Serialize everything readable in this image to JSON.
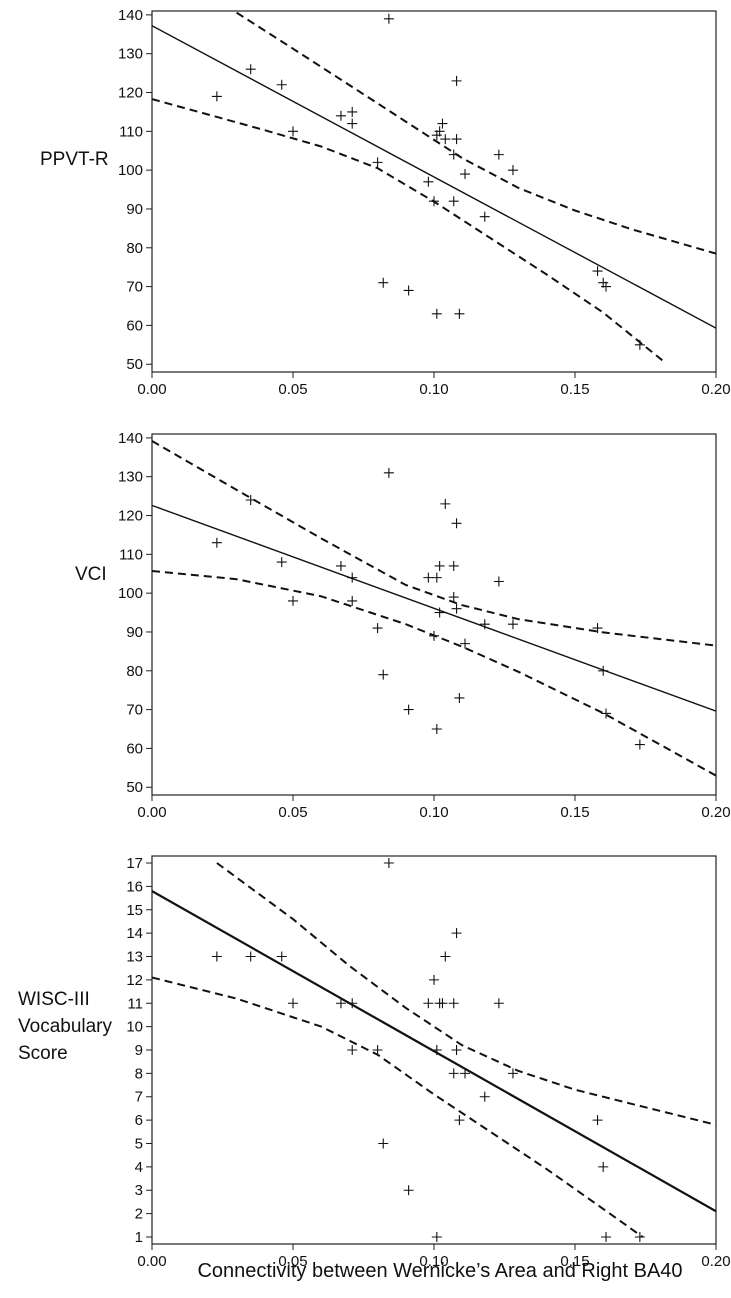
{
  "figure": {
    "xlabel": "Connectivity between Wernicke’s Area and Right BA40"
  },
  "chart_data": [
    {
      "type": "scatter",
      "ylabel": [
        "PPVT-R"
      ],
      "xlim": [
        0.0,
        0.2
      ],
      "ylim": [
        48,
        141
      ],
      "x_ticks": [
        "0.00",
        "0.05",
        "0.10",
        "0.15",
        "0.20"
      ],
      "y_ticks": [
        "50",
        "60",
        "70",
        "80",
        "90",
        "100",
        "110",
        "120",
        "130",
        "140"
      ],
      "points": [
        {
          "x": 0.023,
          "y": 119
        },
        {
          "x": 0.035,
          "y": 126
        },
        {
          "x": 0.046,
          "y": 122
        },
        {
          "x": 0.05,
          "y": 110
        },
        {
          "x": 0.067,
          "y": 114
        },
        {
          "x": 0.071,
          "y": 115
        },
        {
          "x": 0.071,
          "y": 112
        },
        {
          "x": 0.08,
          "y": 102
        },
        {
          "x": 0.082,
          "y": 71
        },
        {
          "x": 0.084,
          "y": 139
        },
        {
          "x": 0.091,
          "y": 69
        },
        {
          "x": 0.098,
          "y": 97
        },
        {
          "x": 0.1,
          "y": 92
        },
        {
          "x": 0.101,
          "y": 109
        },
        {
          "x": 0.101,
          "y": 63
        },
        {
          "x": 0.102,
          "y": 110
        },
        {
          "x": 0.103,
          "y": 112
        },
        {
          "x": 0.104,
          "y": 108
        },
        {
          "x": 0.107,
          "y": 104
        },
        {
          "x": 0.107,
          "y": 92
        },
        {
          "x": 0.108,
          "y": 123
        },
        {
          "x": 0.108,
          "y": 108
        },
        {
          "x": 0.109,
          "y": 63
        },
        {
          "x": 0.111,
          "y": 99
        },
        {
          "x": 0.118,
          "y": 88
        },
        {
          "x": 0.123,
          "y": 104
        },
        {
          "x": 0.128,
          "y": 100
        },
        {
          "x": 0.158,
          "y": 74
        },
        {
          "x": 0.16,
          "y": 71
        },
        {
          "x": 0.161,
          "y": 70
        },
        {
          "x": 0.173,
          "y": 55
        }
      ],
      "regression": {
        "x": [
          0.0,
          0.2
        ],
        "y": [
          137.2,
          59.3
        ]
      },
      "upper_band": {
        "x": [
          0.03,
          0.05,
          0.07,
          0.09,
          0.11,
          0.13,
          0.15,
          0.17,
          0.2
        ],
        "y": [
          140.6,
          131.3,
          121.9,
          112.5,
          103.1,
          95.4,
          89.6,
          84.8,
          78.5
        ]
      },
      "lower_band": {
        "x": [
          0.0,
          0.02,
          0.04,
          0.06,
          0.08,
          0.1,
          0.12,
          0.14,
          0.16,
          0.181
        ],
        "y": [
          118.3,
          114.3,
          110.3,
          106.1,
          100.5,
          91.9,
          82.5,
          73.1,
          63.3,
          51.0
        ]
      }
    },
    {
      "type": "scatter",
      "ylabel": [
        "VCI"
      ],
      "xlim": [
        0.0,
        0.2
      ],
      "ylim": [
        48,
        141
      ],
      "x_ticks": [
        "0.00",
        "0.05",
        "0.10",
        "0.15",
        "0.20"
      ],
      "y_ticks": [
        "50",
        "60",
        "70",
        "80",
        "90",
        "100",
        "110",
        "120",
        "130",
        "140"
      ],
      "points": [
        {
          "x": 0.023,
          "y": 113
        },
        {
          "x": 0.035,
          "y": 124
        },
        {
          "x": 0.046,
          "y": 108
        },
        {
          "x": 0.05,
          "y": 98
        },
        {
          "x": 0.067,
          "y": 107
        },
        {
          "x": 0.071,
          "y": 104
        },
        {
          "x": 0.071,
          "y": 98
        },
        {
          "x": 0.08,
          "y": 91
        },
        {
          "x": 0.082,
          "y": 79
        },
        {
          "x": 0.084,
          "y": 131
        },
        {
          "x": 0.091,
          "y": 70
        },
        {
          "x": 0.098,
          "y": 104
        },
        {
          "x": 0.1,
          "y": 89
        },
        {
          "x": 0.101,
          "y": 104
        },
        {
          "x": 0.101,
          "y": 65
        },
        {
          "x": 0.102,
          "y": 107
        },
        {
          "x": 0.102,
          "y": 95
        },
        {
          "x": 0.104,
          "y": 123
        },
        {
          "x": 0.107,
          "y": 107
        },
        {
          "x": 0.107,
          "y": 99
        },
        {
          "x": 0.108,
          "y": 118
        },
        {
          "x": 0.108,
          "y": 96
        },
        {
          "x": 0.109,
          "y": 73
        },
        {
          "x": 0.111,
          "y": 87
        },
        {
          "x": 0.118,
          "y": 92
        },
        {
          "x": 0.123,
          "y": 103
        },
        {
          "x": 0.128,
          "y": 92
        },
        {
          "x": 0.158,
          "y": 91
        },
        {
          "x": 0.16,
          "y": 80
        },
        {
          "x": 0.161,
          "y": 69
        },
        {
          "x": 0.173,
          "y": 61
        }
      ],
      "regression": {
        "x": [
          0.0,
          0.2
        ],
        "y": [
          122.6,
          69.6
        ]
      },
      "upper_band": {
        "x": [
          0.0,
          0.03,
          0.06,
          0.09,
          0.11,
          0.13,
          0.16,
          0.2
        ],
        "y": [
          139.2,
          126.6,
          114.1,
          102.1,
          96.9,
          93.3,
          89.9,
          86.5
        ]
      },
      "lower_band": {
        "x": [
          0.0,
          0.03,
          0.06,
          0.09,
          0.11,
          0.13,
          0.16,
          0.2
        ],
        "y": [
          105.7,
          103.6,
          99.2,
          92.0,
          86.2,
          79.7,
          69.1,
          53.0
        ]
      }
    },
    {
      "type": "scatter",
      "ylabel": [
        "WISC-III",
        "Vocabulary",
        "Score"
      ],
      "xlim": [
        0.0,
        0.2
      ],
      "ylim": [
        0.7,
        17.3
      ],
      "x_ticks": [
        "0.00",
        "0.05",
        "0.10",
        "0.15",
        "0.20"
      ],
      "y_ticks": [
        "1",
        "2",
        "3",
        "4",
        "5",
        "6",
        "7",
        "8",
        "9",
        "10",
        "11",
        "12",
        "13",
        "14",
        "15",
        "16",
        "17"
      ],
      "points": [
        {
          "x": 0.023,
          "y": 13
        },
        {
          "x": 0.035,
          "y": 13
        },
        {
          "x": 0.046,
          "y": 13
        },
        {
          "x": 0.05,
          "y": 11
        },
        {
          "x": 0.067,
          "y": 11
        },
        {
          "x": 0.071,
          "y": 11
        },
        {
          "x": 0.071,
          "y": 9
        },
        {
          "x": 0.08,
          "y": 9
        },
        {
          "x": 0.082,
          "y": 5
        },
        {
          "x": 0.084,
          "y": 17
        },
        {
          "x": 0.091,
          "y": 3
        },
        {
          "x": 0.098,
          "y": 11
        },
        {
          "x": 0.1,
          "y": 12
        },
        {
          "x": 0.101,
          "y": 9
        },
        {
          "x": 0.101,
          "y": 1
        },
        {
          "x": 0.102,
          "y": 11
        },
        {
          "x": 0.103,
          "y": 11
        },
        {
          "x": 0.104,
          "y": 13
        },
        {
          "x": 0.107,
          "y": 11
        },
        {
          "x": 0.107,
          "y": 8
        },
        {
          "x": 0.108,
          "y": 14
        },
        {
          "x": 0.108,
          "y": 9
        },
        {
          "x": 0.109,
          "y": 6
        },
        {
          "x": 0.111,
          "y": 8
        },
        {
          "x": 0.118,
          "y": 7
        },
        {
          "x": 0.123,
          "y": 11
        },
        {
          "x": 0.128,
          "y": 8
        },
        {
          "x": 0.158,
          "y": 6
        },
        {
          "x": 0.16,
          "y": 4
        },
        {
          "x": 0.161,
          "y": 1
        },
        {
          "x": 0.173,
          "y": 1
        }
      ],
      "regression": {
        "x": [
          0.0,
          0.2
        ],
        "y": [
          15.8,
          2.1
        ]
      },
      "upper_band": {
        "x": [
          0.023,
          0.05,
          0.07,
          0.09,
          0.11,
          0.13,
          0.15,
          0.17,
          0.2
        ],
        "y": [
          17.0,
          14.6,
          12.6,
          10.8,
          9.2,
          8.1,
          7.3,
          6.7,
          5.8
        ]
      },
      "lower_band": {
        "x": [
          0.0,
          0.03,
          0.06,
          0.08,
          0.1,
          0.12,
          0.14,
          0.16,
          0.174
        ],
        "y": [
          12.1,
          11.2,
          10.0,
          8.8,
          7.1,
          5.5,
          3.9,
          2.2,
          1.0
        ]
      }
    }
  ]
}
